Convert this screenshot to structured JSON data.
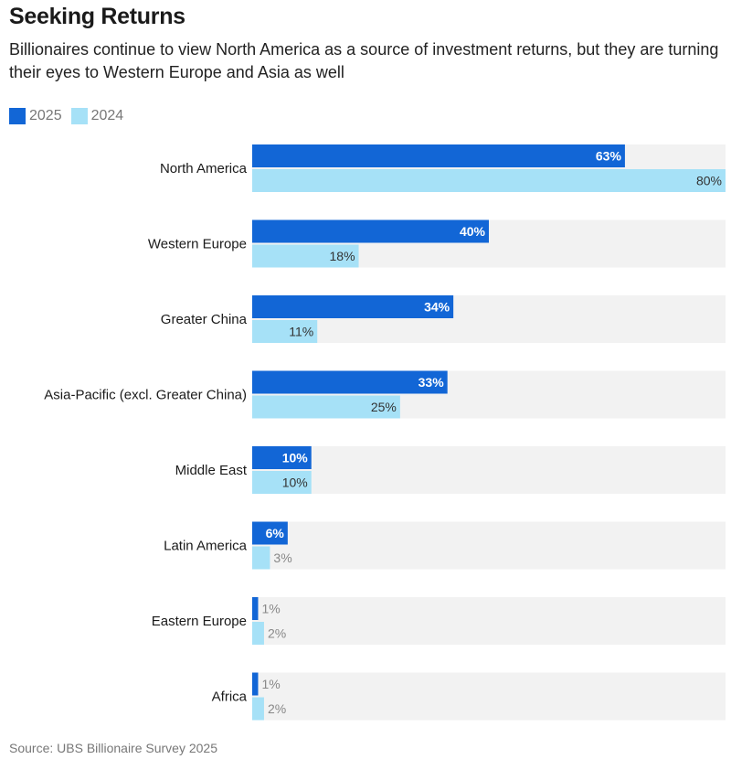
{
  "header": {
    "title": "Seeking Returns",
    "subtitle": "Billionaires continue to view North America as a source of investment returns, but they are turning their eyes to Western Europe and Asia as well"
  },
  "footer": {
    "source": "Source: UBS Billionaire Survey 2025"
  },
  "colors": {
    "series_2025": "#1266d6",
    "series_2024": "#a6e1f7",
    "track": "#f2f2f2"
  },
  "chart_data": {
    "type": "bar",
    "orientation": "horizontal",
    "title": "Seeking Returns",
    "xlabel": "",
    "ylabel": "",
    "xlim": [
      0,
      80
    ],
    "legend": "top-left",
    "categories": [
      "North America",
      "Western Europe",
      "Greater China",
      "Asia-Pacific (excl. Greater China)",
      "Middle East",
      "Latin America",
      "Eastern Europe",
      "Africa"
    ],
    "series": [
      {
        "name": "2025",
        "values": [
          63,
          40,
          34,
          33,
          10,
          6,
          1,
          1
        ],
        "labels": [
          "63%",
          "40%",
          "34%",
          "33%",
          "10%",
          "6%",
          "1%",
          "1%"
        ]
      },
      {
        "name": "2024",
        "values": [
          80,
          18,
          11,
          25,
          10,
          3,
          2,
          2
        ],
        "labels": [
          "80%",
          "18%",
          "11%",
          "25%",
          "10%",
          "3%",
          "2%",
          "2%"
        ]
      }
    ]
  }
}
